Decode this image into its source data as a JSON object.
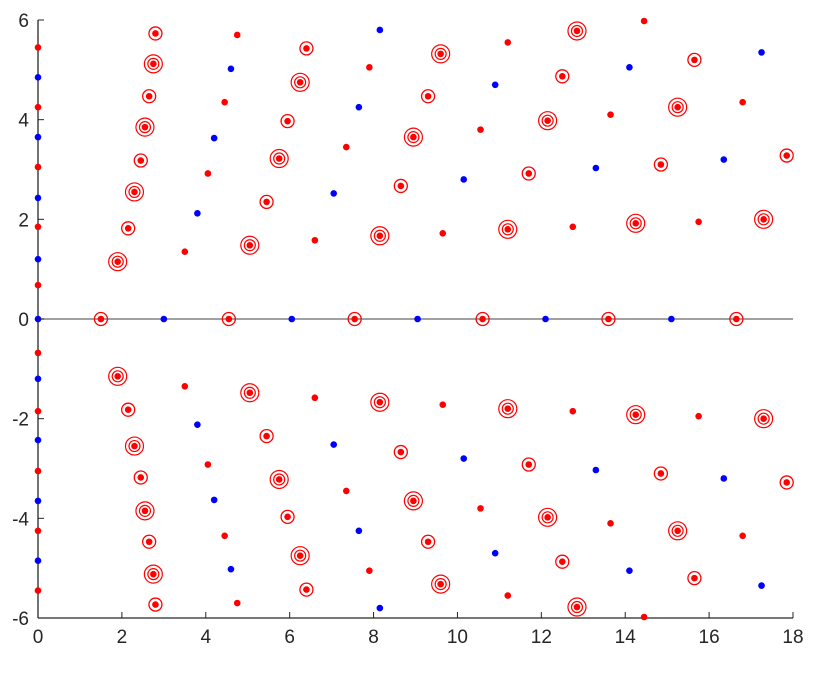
{
  "chart_data": {
    "type": "scatter",
    "title": "",
    "xlabel": "",
    "ylabel": "",
    "xlim": [
      0,
      18
    ],
    "ylim": [
      -6,
      6
    ],
    "xticks": [
      "0",
      "2",
      "4",
      "6",
      "8",
      "10",
      "12",
      "14",
      "16",
      "18"
    ],
    "yticks": [
      "-6",
      "-4",
      "-2",
      "0",
      "2",
      "4",
      "6"
    ],
    "grid": false,
    "legend": "none",
    "reference_line": {
      "y": 0,
      "color": "#808080"
    },
    "colors": {
      "red": "#ff0000",
      "blue": "#0000ff",
      "axis": "#262626"
    },
    "series": [
      {
        "color": "red",
        "marker": "dot",
        "points": [
          [
            0,
            5.45
          ],
          [
            0,
            4.25
          ],
          [
            0,
            3.05
          ],
          [
            0,
            1.85
          ],
          [
            0,
            0.68
          ],
          [
            0,
            -0.68
          ],
          [
            0,
            -1.85
          ],
          [
            0,
            -3.05
          ],
          [
            0,
            -4.25
          ],
          [
            0,
            -5.45
          ],
          [
            4.75,
            5.7
          ],
          [
            4.45,
            4.35
          ],
          [
            4.05,
            2.92
          ],
          [
            3.5,
            1.35
          ],
          [
            7.9,
            5.05
          ],
          [
            7.35,
            3.45
          ],
          [
            6.6,
            1.58
          ],
          [
            11.2,
            5.55
          ],
          [
            10.55,
            3.8
          ],
          [
            9.65,
            1.72
          ],
          [
            14.45,
            5.98
          ],
          [
            13.65,
            4.1
          ],
          [
            12.75,
            1.85
          ],
          [
            16.8,
            4.35
          ],
          [
            15.75,
            1.95
          ],
          [
            4.75,
            -5.7
          ],
          [
            4.45,
            -4.35
          ],
          [
            4.05,
            -2.92
          ],
          [
            3.5,
            -1.35
          ],
          [
            7.9,
            -5.05
          ],
          [
            7.35,
            -3.45
          ],
          [
            6.6,
            -1.58
          ],
          [
            11.2,
            -5.55
          ],
          [
            10.55,
            -3.8
          ],
          [
            9.65,
            -1.72
          ],
          [
            14.45,
            -5.98
          ],
          [
            13.65,
            -4.1
          ],
          [
            12.75,
            -1.85
          ],
          [
            16.8,
            -4.35
          ],
          [
            15.75,
            -1.95
          ]
        ]
      },
      {
        "color": "blue",
        "marker": "dot",
        "points": [
          [
            0,
            4.85
          ],
          [
            0,
            3.65
          ],
          [
            0,
            2.43
          ],
          [
            0,
            1.2
          ],
          [
            0,
            0
          ],
          [
            0,
            -1.2
          ],
          [
            0,
            -2.43
          ],
          [
            0,
            -3.65
          ],
          [
            0,
            -4.85
          ],
          [
            3.0,
            0
          ],
          [
            6.05,
            0
          ],
          [
            9.05,
            0
          ],
          [
            12.1,
            0
          ],
          [
            15.1,
            0
          ],
          [
            8.15,
            5.8
          ],
          [
            4.6,
            5.02
          ],
          [
            7.65,
            4.25
          ],
          [
            4.2,
            3.63
          ],
          [
            3.8,
            2.12
          ],
          [
            7.05,
            2.52
          ],
          [
            10.9,
            4.7
          ],
          [
            10.15,
            2.8
          ],
          [
            14.1,
            5.05
          ],
          [
            13.3,
            3.03
          ],
          [
            17.25,
            5.35
          ],
          [
            16.35,
            3.2
          ],
          [
            8.15,
            -5.8
          ],
          [
            4.6,
            -5.02
          ],
          [
            7.65,
            -4.25
          ],
          [
            4.2,
            -3.63
          ],
          [
            3.8,
            -2.12
          ],
          [
            7.05,
            -2.52
          ],
          [
            10.9,
            -4.7
          ],
          [
            10.15,
            -2.8
          ],
          [
            14.1,
            -5.05
          ],
          [
            13.3,
            -3.03
          ],
          [
            17.25,
            -5.35
          ],
          [
            16.35,
            -3.2
          ]
        ]
      },
      {
        "color": "red",
        "marker": "ring-small",
        "points": [
          [
            1.5,
            0
          ],
          [
            4.55,
            0
          ],
          [
            7.55,
            0
          ],
          [
            10.6,
            0
          ],
          [
            13.6,
            0
          ],
          [
            16.65,
            0
          ],
          [
            2.8,
            5.73
          ],
          [
            2.65,
            4.47
          ],
          [
            2.45,
            3.18
          ],
          [
            2.15,
            1.82
          ],
          [
            6.4,
            5.43
          ],
          [
            5.95,
            3.97
          ],
          [
            5.45,
            2.35
          ],
          [
            9.3,
            4.47
          ],
          [
            8.65,
            2.67
          ],
          [
            12.5,
            4.87
          ],
          [
            11.7,
            2.92
          ],
          [
            15.65,
            5.2
          ],
          [
            14.85,
            3.1
          ],
          [
            2.8,
            -5.73
          ],
          [
            2.65,
            -4.47
          ],
          [
            2.45,
            -3.18
          ],
          [
            2.15,
            -1.82
          ],
          [
            6.4,
            -5.43
          ],
          [
            5.95,
            -3.97
          ],
          [
            5.45,
            -2.35
          ],
          [
            9.3,
            -4.47
          ],
          [
            8.65,
            -2.67
          ],
          [
            12.5,
            -4.87
          ],
          [
            11.7,
            -2.92
          ],
          [
            15.65,
            -5.2
          ],
          [
            14.85,
            -3.1
          ],
          [
            17.85,
            3.28
          ],
          [
            17.85,
            -3.28
          ]
        ]
      },
      {
        "color": "red",
        "marker": "ring-double",
        "points": [
          [
            2.75,
            5.12
          ],
          [
            2.55,
            3.85
          ],
          [
            2.3,
            2.55
          ],
          [
            1.9,
            1.15
          ],
          [
            6.25,
            4.75
          ],
          [
            5.75,
            3.22
          ],
          [
            5.05,
            1.48
          ],
          [
            9.6,
            5.32
          ],
          [
            8.95,
            3.65
          ],
          [
            8.15,
            1.67
          ],
          [
            12.85,
            5.78
          ],
          [
            12.15,
            3.98
          ],
          [
            11.2,
            1.8
          ],
          [
            15.25,
            4.25
          ],
          [
            14.25,
            1.92
          ],
          [
            17.3,
            2.0
          ],
          [
            2.75,
            -5.12
          ],
          [
            2.55,
            -3.85
          ],
          [
            2.3,
            -2.55
          ],
          [
            1.9,
            -1.15
          ],
          [
            6.25,
            -4.75
          ],
          [
            5.75,
            -3.22
          ],
          [
            5.05,
            -1.48
          ],
          [
            9.6,
            -5.32
          ],
          [
            8.95,
            -3.65
          ],
          [
            8.15,
            -1.67
          ],
          [
            12.85,
            -5.78
          ],
          [
            12.15,
            -3.98
          ],
          [
            11.2,
            -1.8
          ],
          [
            15.25,
            -4.25
          ],
          [
            14.25,
            -1.92
          ],
          [
            17.3,
            -2.0
          ]
        ]
      }
    ]
  }
}
